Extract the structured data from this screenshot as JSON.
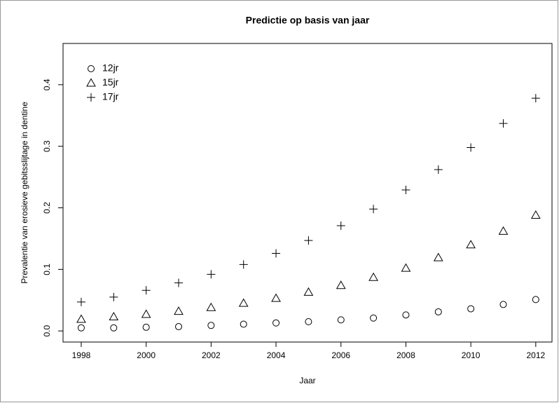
{
  "chart_data": {
    "type": "scatter",
    "title": "Predictie op basis van jaar",
    "x_label": "Jaar",
    "y_label": "Prevalentie van erosieve gebitsslijtage in dentine",
    "x": [
      1998,
      1999,
      2000,
      2001,
      2002,
      2003,
      2004,
      2005,
      2006,
      2007,
      2008,
      2009,
      2010,
      2011,
      2012
    ],
    "series": [
      {
        "name": "12jr",
        "color": "#000000",
        "marker": "circle",
        "values": [
          0.005,
          0.005,
          0.006,
          0.007,
          0.009,
          0.011,
          0.013,
          0.015,
          0.018,
          0.021,
          0.026,
          0.031,
          0.036,
          0.043,
          0.051
        ]
      },
      {
        "name": "15jr",
        "color": "#000000",
        "marker": "triangle",
        "values": [
          0.019,
          0.023,
          0.027,
          0.032,
          0.038,
          0.045,
          0.053,
          0.063,
          0.074,
          0.087,
          0.102,
          0.119,
          0.14,
          0.162,
          0.188
        ]
      },
      {
        "name": "17jr",
        "color": "#000000",
        "marker": "plus",
        "values": [
          0.047,
          0.055,
          0.066,
          0.078,
          0.092,
          0.108,
          0.126,
          0.147,
          0.171,
          0.198,
          0.229,
          0.262,
          0.298,
          0.337,
          0.378
        ]
      }
    ],
    "xlim": [
      1997.44,
      2012.5
    ],
    "ylim": [
      -0.018,
      0.467
    ],
    "xticks": [
      1998,
      2000,
      2002,
      2004,
      2006,
      2008,
      2010,
      2012
    ],
    "yticks": [
      {
        "value": 0,
        "label": "0.0"
      },
      0.1,
      0.2,
      0.3,
      0.4
    ],
    "legend": "top-left",
    "grid": false
  }
}
